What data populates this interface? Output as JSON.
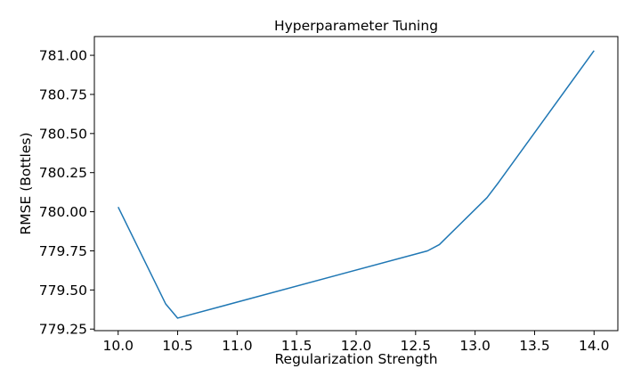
{
  "chart_data": {
    "type": "line",
    "title": "Hyperparameter Tuning",
    "xlabel": "Regularization Strength",
    "ylabel": "RMSE (Bottles)",
    "xlim": [
      9.8,
      14.2
    ],
    "ylim": [
      779.24,
      781.12
    ],
    "x_ticks": [
      10.0,
      10.5,
      11.0,
      11.5,
      12.0,
      12.5,
      13.0,
      13.5,
      14.0
    ],
    "x_tick_labels": [
      "10.0",
      "10.5",
      "11.0",
      "11.5",
      "12.0",
      "12.5",
      "13.0",
      "13.5",
      "14.0"
    ],
    "y_ticks": [
      779.25,
      779.5,
      779.75,
      780.0,
      780.25,
      780.5,
      780.75,
      781.0
    ],
    "y_tick_labels": [
      "779.25",
      "779.50",
      "779.75",
      "780.00",
      "780.25",
      "780.50",
      "780.75",
      "781.00"
    ],
    "grid": false,
    "series": [
      {
        "color": "#1f77b4",
        "x": [
          10.0,
          10.4,
          10.5,
          12.6,
          12.7,
          13.1,
          13.2,
          14.0
        ],
        "y": [
          780.03,
          779.41,
          779.32,
          779.75,
          779.79,
          780.09,
          780.19,
          781.03
        ]
      }
    ]
  }
}
